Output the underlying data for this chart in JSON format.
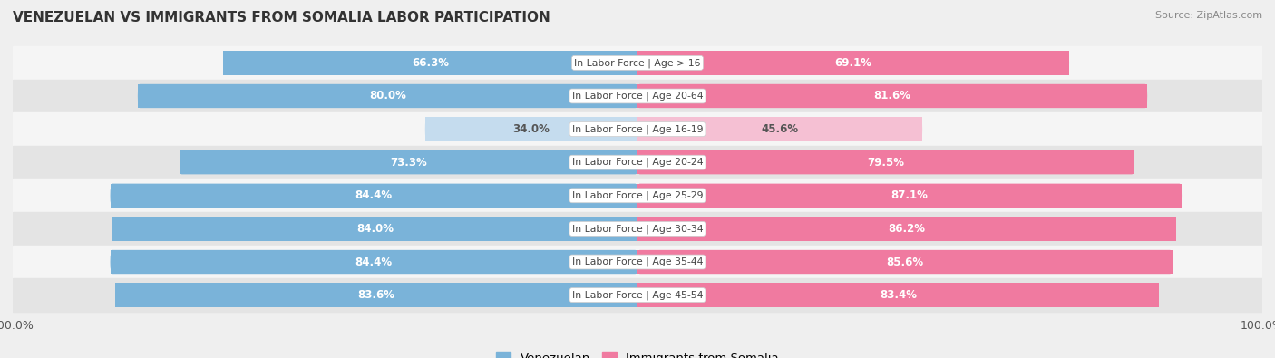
{
  "title": "VENEZUELAN VS IMMIGRANTS FROM SOMALIA LABOR PARTICIPATION",
  "source": "Source: ZipAtlas.com",
  "categories": [
    "In Labor Force | Age > 16",
    "In Labor Force | Age 20-64",
    "In Labor Force | Age 16-19",
    "In Labor Force | Age 20-24",
    "In Labor Force | Age 25-29",
    "In Labor Force | Age 30-34",
    "In Labor Force | Age 35-44",
    "In Labor Force | Age 45-54"
  ],
  "venezuelan": [
    66.3,
    80.0,
    34.0,
    73.3,
    84.4,
    84.0,
    84.4,
    83.6
  ],
  "somalia": [
    69.1,
    81.6,
    45.6,
    79.5,
    87.1,
    86.2,
    85.6,
    83.4
  ],
  "venezuelan_color": "#7ab3d9",
  "venezuelan_light_color": "#c5dcee",
  "somalia_color": "#f07aA0",
  "somalia_light_color": "#f5c0d3",
  "bar_height": 0.72,
  "bg_color": "#efefef",
  "row_bg_light": "#f5f5f5",
  "row_bg_dark": "#e4e4e4",
  "label_color_dark": "#555555",
  "label_color_white": "#ffffff",
  "max_val": 100.0,
  "legend_venezuelan": "Venezuelan",
  "legend_somalia": "Immigrants from Somalia"
}
